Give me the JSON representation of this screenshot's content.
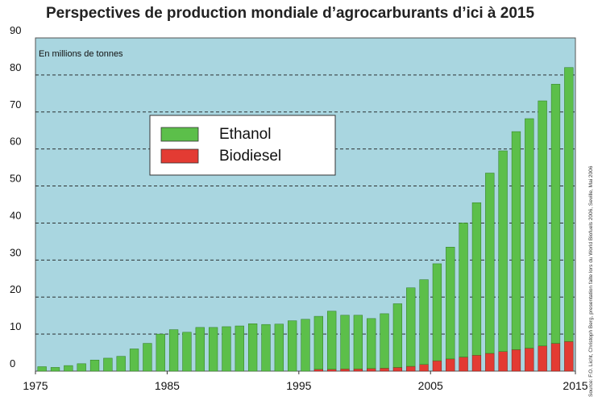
{
  "title": "Perspectives de production mondiale d’agrocarburants d’ici à 2015",
  "source": "Source: F.O. Licht, Christoph Berg, presentation faite lors du World Biofuels 2006, Seville, Mai 2006",
  "colors": {
    "plot_bg": "#a9d6e0",
    "ethanol": "#5cbf4a",
    "biodiesel": "#e33b33",
    "grid": "#1a1a1a",
    "text": "#111111"
  },
  "chart_data": {
    "type": "bar",
    "stacked": true,
    "unit_label": "En millions de tonnes",
    "ylim": [
      0,
      90
    ],
    "yticks": [
      0,
      10,
      20,
      30,
      40,
      50,
      60,
      70,
      80,
      90
    ],
    "xticks": [
      1975,
      1985,
      1995,
      2005,
      2015
    ],
    "grid": true,
    "legend_position": "top-center",
    "x": [
      1975,
      1976,
      1977,
      1978,
      1979,
      1980,
      1981,
      1982,
      1983,
      1984,
      1985,
      1986,
      1987,
      1988,
      1989,
      1990,
      1991,
      1992,
      1993,
      1994,
      1995,
      1996,
      1997,
      1998,
      1999,
      2000,
      2001,
      2002,
      2003,
      2004,
      2005,
      2006,
      2007,
      2008,
      2009,
      2010,
      2011,
      2012,
      2013,
      2014,
      2015
    ],
    "series": [
      {
        "name": "Biodiesel",
        "values": [
          0,
          0,
          0,
          0,
          0,
          0,
          0,
          0,
          0,
          0,
          0,
          0,
          0,
          0,
          0,
          0,
          0,
          0,
          0,
          0,
          0,
          0.5,
          0.5,
          0.6,
          0.6,
          0.7,
          0.8,
          1.0,
          1.3,
          1.8,
          2.8,
          3.3,
          3.8,
          4.3,
          4.8,
          5.3,
          5.8,
          6.2,
          6.8,
          7.5,
          8.0
        ]
      },
      {
        "name": "Ethanol",
        "values": [
          1.2,
          1.0,
          1.5,
          2.0,
          3.0,
          3.5,
          4.0,
          6.0,
          7.5,
          10.0,
          11.2,
          10.5,
          11.8,
          11.8,
          12.0,
          12.2,
          12.8,
          12.6,
          12.7,
          13.6,
          14.0,
          14.3,
          15.7,
          14.5,
          14.5,
          13.5,
          14.7,
          17.2,
          21.2,
          22.9,
          26.2,
          30.2,
          36.2,
          41.2,
          48.7,
          54.2,
          58.9,
          62.0,
          66.2,
          70.0,
          74.0
        ]
      }
    ]
  }
}
